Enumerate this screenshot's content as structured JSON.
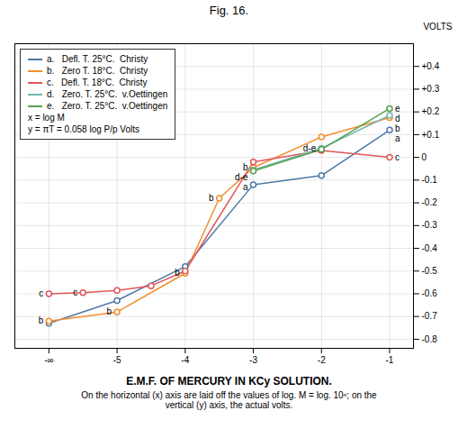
{
  "chart_data": {
    "type": "line",
    "title": "Fig. 16.",
    "xlabel": "E.M.F. OF MERCURY IN KCy SOLUTION.",
    "ylabel": "VOLTS",
    "caption": "On the horizontal (x) axis are laid off the values of log. M = log. 10ⁿ; on the\nvertical (y) axis, the actual volts.",
    "xlim": [
      -6.5,
      -0.65
    ],
    "ylim": [
      -0.84,
      0.5
    ],
    "xticks": [
      {
        "value": -6,
        "label": "-∞"
      },
      -5,
      -4,
      -3,
      -2,
      -1
    ],
    "yticks": [
      -0.8,
      -0.7,
      -0.6,
      -0.5,
      -0.4,
      -0.3,
      -0.2,
      -0.1,
      0,
      {
        "value": 0.1,
        "label": "+0.1"
      },
      {
        "value": 0.2,
        "label": "+0.2"
      },
      {
        "value": 0.3,
        "label": "+0.3"
      },
      {
        "value": 0.4,
        "label": "+0.4"
      }
    ],
    "grid": true,
    "legend": "top-left",
    "marker": "circle",
    "series": [
      {
        "name": "a.   Defl. T. 25°C.  Christy",
        "x": [
          -6.0,
          -5.0,
          -4.0,
          -3.0,
          -2.0,
          -1.0
        ],
        "values": [
          -0.73,
          -0.63,
          -0.48,
          -0.12,
          -0.08,
          0.12
        ]
      },
      {
        "name": "b.   Zero T. 18°C.  Christy",
        "x": [
          -6.0,
          -5.0,
          -4.0,
          -3.5,
          -3.0,
          -2.0,
          -1.0
        ],
        "values": [
          -0.72,
          -0.68,
          -0.51,
          -0.18,
          -0.045,
          0.09,
          0.175
        ]
      },
      {
        "name": "c.   Defl. T. 18°C.  Christy",
        "x": [
          -6.0,
          -5.5,
          -5.0,
          -4.5,
          -4.0,
          -3.0,
          -2.0,
          -1.0
        ],
        "values": [
          -0.6,
          -0.595,
          -0.585,
          -0.565,
          -0.5,
          -0.02,
          0.03,
          0.0
        ]
      },
      {
        "name": "d.   Zero. T. 25°C.  v.Oettingen",
        "x": [
          -3.0,
          -2.0,
          -1.0
        ],
        "values": [
          -0.055,
          0.04,
          0.185
        ]
      },
      {
        "name": "e.   Zero. T. 25°C.  v.Oettingen",
        "x": [
          -3.0,
          -2.0,
          -1.0
        ],
        "values": [
          -0.06,
          0.035,
          0.215
        ]
      }
    ],
    "legend_notes": [
      "x = log M",
      "y = πT = 0.058 log P/p Volts"
    ],
    "annotations": [
      {
        "text": "a",
        "x": -1.0,
        "y": 0.12,
        "anchor": "start"
      },
      {
        "text": "b",
        "x": -1.0,
        "y": 0.175,
        "anchor": "start"
      },
      {
        "text": "c",
        "x": -1.0,
        "y": 0.0,
        "anchor": "start"
      },
      {
        "text": "d",
        "x": -1.0,
        "y": 0.185,
        "anchor": "start"
      },
      {
        "text": "e",
        "x": -1.0,
        "y": 0.215,
        "anchor": "start"
      },
      {
        "text": "b",
        "x": -4.0,
        "y": -0.51,
        "anchor": "end"
      },
      {
        "text": "b",
        "x": -3.5,
        "y": -0.18,
        "anchor": "end"
      },
      {
        "text": "b",
        "x": -3.0,
        "y": -0.045,
        "anchor": "end"
      },
      {
        "text": "d-e",
        "x": -3.0,
        "y": -0.055,
        "anchor": "end"
      },
      {
        "text": "d-e",
        "x": -2.0,
        "y": 0.0375,
        "anchor": "end"
      },
      {
        "text": "a",
        "x": -3.0,
        "y": -0.12,
        "anchor": "end"
      },
      {
        "text": "c",
        "x": -6.0,
        "y": -0.6,
        "anchor": "end"
      },
      {
        "text": "c",
        "x": -5.5,
        "y": -0.595,
        "anchor": "end"
      },
      {
        "text": "b",
        "x": -6.0,
        "y": -0.72,
        "anchor": "end"
      },
      {
        "text": "b",
        "x": -5.0,
        "y": -0.68,
        "anchor": "end"
      }
    ]
  }
}
